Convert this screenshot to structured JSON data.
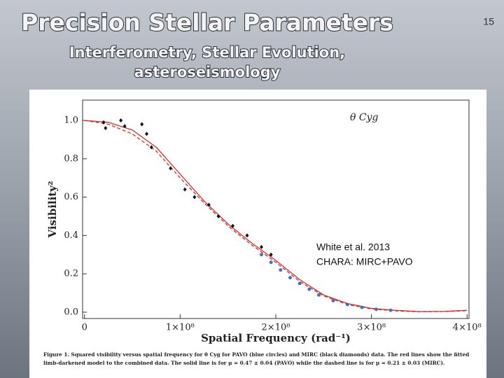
{
  "slide": {
    "title": "Precision Stellar Parameters",
    "subtitle_lines": [
      "Interferometry, Stellar Evolution,",
      "asteroseismology"
    ],
    "page_number": "15"
  },
  "chart_data": {
    "type": "scatter",
    "title": "θ Cyg",
    "xlabel": "Spatial Frequency (rad⁻¹)",
    "ylabel": "Visibility²",
    "annotations": [
      "White et al. 2013",
      "CHARA: MIRC+PAVO"
    ],
    "caption_lines": [
      "Figure 1.  Squared visibility versus spatial frequency for θ Cyg for PAVO (blue circles) and MIRC (black diamonds) data. The red lines show the fitted",
      "limb-darkened model to the combined data. The solid line is for μ = 0.47 ± 0.04 (PAVO) while the dashed line is for μ = 0.21 ± 0.03 (MIRC)."
    ],
    "xlim": [
      -2000000,
      402000000
    ],
    "ylim": [
      -0.033,
      1.106
    ],
    "xticks": [
      0,
      {
        "value": 100000000,
        "label": "1×10⁸"
      },
      {
        "value": 200000000,
        "label": "2×10⁸"
      },
      {
        "value": 300000000,
        "label": "3×10⁸"
      },
      {
        "value": 400000000,
        "label": "4×10⁸"
      }
    ],
    "yticks": [
      {
        "value": 0,
        "label": "0.0"
      },
      0.2,
      0.4,
      0.6,
      0.8,
      {
        "value": 1,
        "label": "1.0"
      }
    ],
    "series": [
      {
        "marker": "line",
        "color": "#d03030",
        "x": [
          0,
          25000000,
          50000000,
          75000000,
          100000000,
          125000000,
          150000000,
          175000000,
          200000000,
          225000000,
          250000000,
          275000000,
          300000000,
          325000000,
          350000000,
          375000000,
          400000000
        ],
        "values": [
          1.0,
          0.99,
          0.95,
          0.86,
          0.72,
          0.58,
          0.46,
          0.36,
          0.27,
          0.17,
          0.09,
          0.045,
          0.02,
          0.01,
          0.003,
          0.004,
          0.01
        ]
      },
      {
        "marker": "dashed",
        "color": "#d03030",
        "x": [
          0,
          25000000,
          50000000,
          75000000,
          100000000,
          125000000,
          150000000,
          175000000,
          200000000,
          225000000,
          250000000,
          275000000,
          300000000,
          325000000,
          350000000,
          375000000,
          400000000
        ],
        "values": [
          1.0,
          0.98,
          0.93,
          0.84,
          0.7,
          0.57,
          0.45,
          0.35,
          0.26,
          0.16,
          0.085,
          0.04,
          0.017,
          0.007,
          0.002,
          0.003,
          0.008
        ]
      },
      {
        "marker": "circle",
        "color": "#4a6fc0",
        "x": [
          185000000,
          195000000,
          205000000,
          215000000,
          225000000,
          235000000,
          245000000,
          260000000,
          275000000,
          290000000,
          305000000,
          320000000
        ],
        "values": [
          0.3,
          0.26,
          0.22,
          0.18,
          0.15,
          0.12,
          0.09,
          0.06,
          0.04,
          0.025,
          0.015,
          0.01
        ]
      },
      {
        "marker": "diamond",
        "color": "#111111",
        "x": [
          20000000,
          22000000,
          38000000,
          42000000,
          60000000,
          65000000,
          70000000,
          90000000,
          105000000,
          115000000,
          130000000,
          140000000,
          155000000,
          170000000,
          185000000,
          195000000
        ],
        "values": [
          0.99,
          0.96,
          1.0,
          0.97,
          0.98,
          0.93,
          0.86,
          0.75,
          0.64,
          0.6,
          0.56,
          0.5,
          0.45,
          0.4,
          0.34,
          0.3
        ]
      }
    ]
  }
}
